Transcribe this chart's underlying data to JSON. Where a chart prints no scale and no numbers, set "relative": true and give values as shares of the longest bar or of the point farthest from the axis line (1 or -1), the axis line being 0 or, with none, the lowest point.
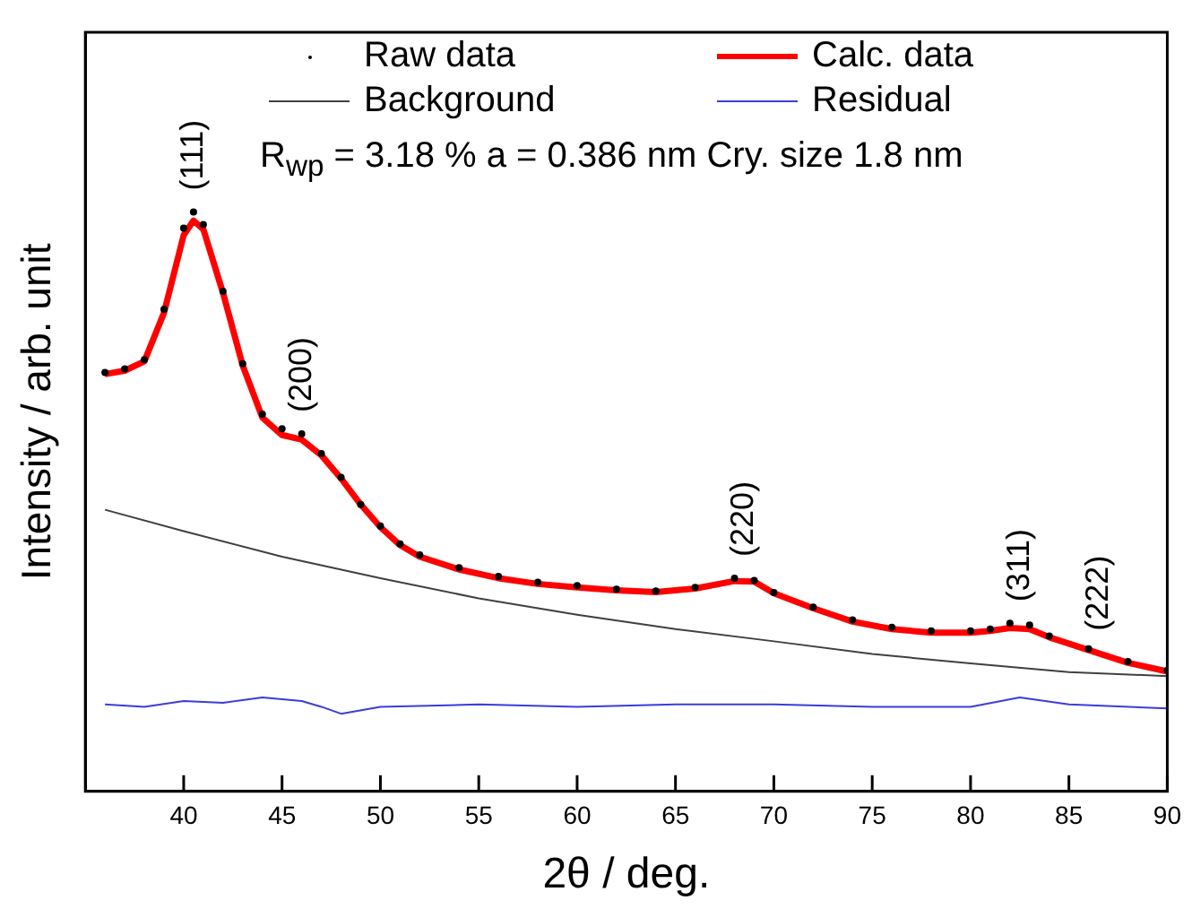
{
  "chart_data": {
    "type": "line",
    "relative": true,
    "xlabel": "2θ / deg.",
    "ylabel": "Intensity / arb. unit",
    "xlim": [
      35,
      90
    ],
    "xticks": [
      40,
      45,
      50,
      55,
      60,
      65,
      70,
      75,
      80,
      85,
      90
    ],
    "grid": false,
    "legend": "top",
    "annotations": [
      {
        "text": "(111)",
        "x": 40.5,
        "y": 1.0
      },
      {
        "text": "(200)",
        "x": 46,
        "y": 0.617
      },
      {
        "text": "(220)",
        "x": 68.5,
        "y": 0.368
      },
      {
        "text": "(311)",
        "x": 82.5,
        "y": 0.29
      },
      {
        "text": "(222)",
        "x": 86.5,
        "y": 0.24
      },
      "R$_{wp}$ = 3.18 % a = 0.386 nm Cry. size 1.8 nm"
    ],
    "series": [
      {
        "name": "Raw data",
        "type": "scatter",
        "marker": "circle",
        "color": "#000000",
        "x": [
          36,
          37,
          38,
          39,
          40,
          40.5,
          41,
          42,
          43,
          44,
          45,
          46,
          47,
          48,
          49,
          50,
          51,
          52,
          54,
          56,
          58,
          60,
          62,
          64,
          66,
          68,
          69,
          70,
          72,
          74,
          76,
          78,
          80,
          81,
          82,
          83,
          84,
          86,
          88,
          90
        ],
        "values": [
          0.723,
          0.729,
          0.745,
          0.832,
          0.972,
          1.0,
          0.978,
          0.863,
          0.738,
          0.651,
          0.626,
          0.617,
          0.583,
          0.542,
          0.495,
          0.458,
          0.427,
          0.408,
          0.386,
          0.371,
          0.361,
          0.355,
          0.349,
          0.346,
          0.352,
          0.368,
          0.364,
          0.343,
          0.318,
          0.296,
          0.283,
          0.277,
          0.277,
          0.28,
          0.29,
          0.287,
          0.268,
          0.246,
          0.224,
          0.209
        ]
      },
      {
        "name": "Calc. data",
        "type": "line",
        "color": "#ff0000",
        "x": [
          36,
          37,
          38,
          39,
          40,
          40.5,
          41,
          42,
          43,
          44,
          45,
          46,
          47,
          48,
          49,
          50,
          51,
          52,
          54,
          56,
          58,
          60,
          62,
          64,
          66,
          68,
          69,
          70,
          72,
          74,
          76,
          78,
          80,
          81,
          82,
          83,
          84,
          86,
          88,
          90
        ],
        "values": [
          0.72,
          0.726,
          0.742,
          0.826,
          0.96,
          0.985,
          0.97,
          0.86,
          0.735,
          0.645,
          0.615,
          0.607,
          0.58,
          0.54,
          0.495,
          0.456,
          0.425,
          0.405,
          0.383,
          0.368,
          0.358,
          0.352,
          0.347,
          0.344,
          0.35,
          0.363,
          0.362,
          0.342,
          0.316,
          0.293,
          0.28,
          0.274,
          0.274,
          0.277,
          0.282,
          0.28,
          0.266,
          0.244,
          0.222,
          0.207
        ]
      },
      {
        "name": "Background",
        "type": "line",
        "color": "#404040",
        "x": [
          36,
          40,
          45,
          50,
          55,
          60,
          65,
          70,
          75,
          80,
          85,
          90
        ],
        "values": [
          0.486,
          0.449,
          0.405,
          0.368,
          0.333,
          0.305,
          0.28,
          0.259,
          0.237,
          0.221,
          0.206,
          0.199
        ]
      },
      {
        "name": "Residual",
        "type": "line",
        "color": "#3c3cdc",
        "x": [
          36,
          38,
          40,
          42,
          44,
          46,
          47,
          48,
          50,
          55,
          60,
          65,
          70,
          75,
          80,
          82.5,
          85,
          90
        ],
        "values": [
          0.15,
          0.146,
          0.156,
          0.153,
          0.162,
          0.156,
          0.146,
          0.134,
          0.146,
          0.15,
          0.146,
          0.15,
          0.15,
          0.146,
          0.146,
          0.162,
          0.15,
          0.143
        ]
      }
    ]
  }
}
